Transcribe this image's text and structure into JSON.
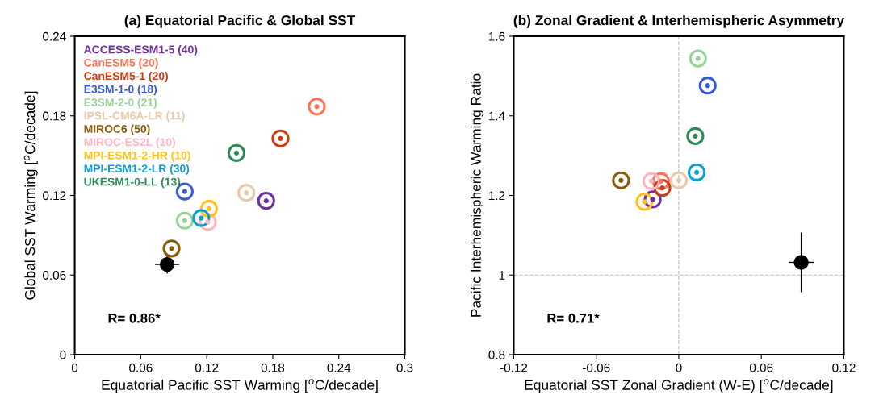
{
  "chart_data": [
    {
      "type": "scatter",
      "title": "(a) Equatorial Pacific & Global SST",
      "xlabel": "Equatorial Pacific SST Warming [$^{o}$C/decade]",
      "ylabel": "Global SST Warming [$^{o}$C/decade]",
      "xlim": [
        0,
        0.3
      ],
      "ylim": [
        0,
        0.24
      ],
      "xticks": [
        0,
        0.06,
        0.12,
        0.18,
        0.24,
        0.3
      ],
      "yticks": [
        0,
        0.06,
        0.12,
        0.18,
        0.24
      ],
      "marker": "circle",
      "legend": "top left",
      "grid": false,
      "annotations": [
        "R= 0.86*"
      ],
      "series": [
        {
          "name": "ACCESS-ESM1-5 (40)",
          "color": "#7030a0",
          "x": [
            0.174
          ],
          "values": [
            0.116
          ]
        },
        {
          "name": "CanESM5 (20)",
          "color": "#ff7256",
          "x": [
            0.22
          ],
          "values": [
            0.187
          ]
        },
        {
          "name": "CanESM5-1 (20)",
          "color": "#d03b10",
          "x": [
            0.187
          ],
          "values": [
            0.163
          ]
        },
        {
          "name": "E3SM-1-0 (18)",
          "color": "#3b5bd6",
          "x": [
            0.1
          ],
          "values": [
            0.123
          ]
        },
        {
          "name": "E3SM-2-0 (21)",
          "color": "#98d49a",
          "x": [
            0.1
          ],
          "values": [
            0.101
          ]
        },
        {
          "name": "IPSL-CM6A-LR (11)",
          "color": "#eac9a8",
          "x": [
            0.156
          ],
          "values": [
            0.122
          ]
        },
        {
          "name": "MIROC6 (50)",
          "color": "#8b5a0a",
          "x": [
            0.088
          ],
          "values": [
            0.08
          ]
        },
        {
          "name": "MIROC-ES2L (10)",
          "color": "#ffb6c1",
          "x": [
            0.121
          ],
          "values": [
            0.1
          ]
        },
        {
          "name": "MPI-ESM1-2-HR (10)",
          "color": "#ffc020",
          "x": [
            0.122
          ],
          "values": [
            0.11
          ]
        },
        {
          "name": "MPI-ESM1-2-LR (30)",
          "color": "#0aa0d0",
          "x": [
            0.115
          ],
          "values": [
            0.103
          ]
        },
        {
          "name": "UKESM1-0-LL (13)",
          "color": "#2e8b57",
          "x": [
            0.147
          ],
          "values": [
            0.152
          ]
        },
        {
          "color": "#000000",
          "x": [
            0.084
          ],
          "values": [
            0.068
          ],
          "errors": [
            0.007
          ],
          "xerrors": [
            0.011
          ]
        }
      ]
    },
    {
      "type": "scatter",
      "title": "(b) Zonal Gradient & Interhemispheric Asymmetry",
      "xlabel": "Equatorial SST Zonal Gradient (W-E) [$^{o}$C/decade]",
      "ylabel": "Pacific Interhemispheric Warming Ratio",
      "xlim": [
        -0.12,
        0.12
      ],
      "ylim": [
        0.8,
        1.6
      ],
      "xticks": [
        -0.12,
        -0.06,
        0,
        0.06,
        0.12
      ],
      "yticks": [
        0.8,
        1,
        1.2,
        1.4,
        1.6
      ],
      "marker": "circle",
      "grid": false,
      "annotations": [
        "R= 0.71*"
      ],
      "ref_lines": [
        {
          "axis": "x",
          "value": 0,
          "color": "#c0c0c0",
          "line_style": "dashed"
        },
        {
          "axis": "y",
          "value": 1,
          "color": "#c0c0c0",
          "line_style": "dashed"
        }
      ],
      "series": [
        {
          "color": "#7030a0",
          "x": [
            -0.019
          ],
          "values": [
            1.19
          ]
        },
        {
          "color": "#ff7256",
          "x": [
            -0.013
          ],
          "values": [
            1.236
          ]
        },
        {
          "color": "#d03b10",
          "x": [
            -0.012
          ],
          "values": [
            1.219
          ]
        },
        {
          "color": "#3b5bd6",
          "x": [
            0.021
          ],
          "values": [
            1.476
          ]
        },
        {
          "color": "#98d49a",
          "x": [
            0.014
          ],
          "values": [
            1.544
          ]
        },
        {
          "color": "#eac9a8",
          "x": [
            0.0
          ],
          "values": [
            1.238
          ]
        },
        {
          "color": "#8b5a0a",
          "x": [
            -0.042
          ],
          "values": [
            1.238
          ]
        },
        {
          "color": "#ffb6c1",
          "x": [
            -0.02
          ],
          "values": [
            1.236
          ]
        },
        {
          "color": "#ffc020",
          "x": [
            -0.025
          ],
          "values": [
            1.184
          ]
        },
        {
          "color": "#0aa0d0",
          "x": [
            0.013
          ],
          "values": [
            1.258
          ]
        },
        {
          "color": "#2e8b57",
          "x": [
            0.012
          ],
          "values": [
            1.349
          ]
        },
        {
          "color": "#000000",
          "x": [
            0.089
          ],
          "values": [
            1.032
          ],
          "errors": [
            0.075
          ],
          "xerrors": [
            0.009
          ]
        }
      ]
    }
  ]
}
